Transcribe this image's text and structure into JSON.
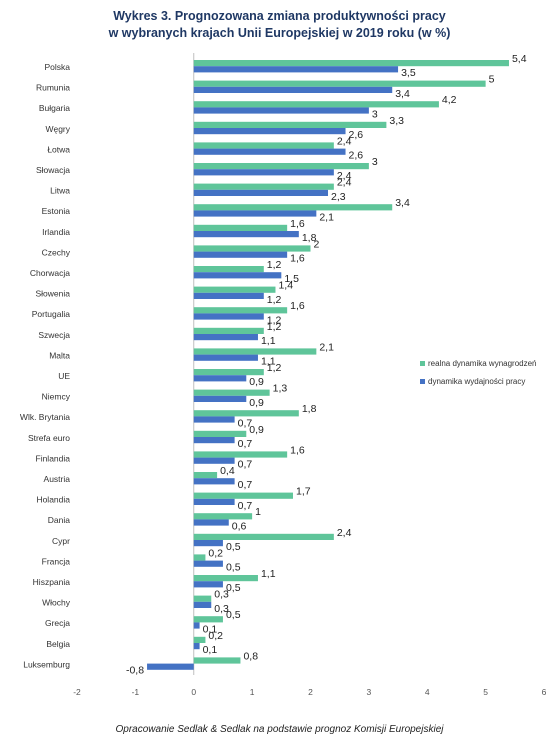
{
  "chart_data": {
    "type": "bar",
    "orientation": "horizontal",
    "title_line1": "Wykres 3. Prognozowana zmiana produktywności pracy",
    "title_line2": "w wybranych krajach Unii Europejskiej w 2019 roku (w %)",
    "source": "Opracowanie Sedlak & Sedlak na podstawie prognoz Komisji Europejskiej",
    "categories": [
      "Polska",
      "Rumunia",
      "Bułgaria",
      "Węgry",
      "Łotwa",
      "Słowacja",
      "Litwa",
      "Estonia",
      "Irlandia",
      "Czechy",
      "Chorwacja",
      "Słowenia",
      "Portugalia",
      "Szwecja",
      "Malta",
      "UE",
      "Niemcy",
      "Wlk. Brytania",
      "Strefa euro",
      "Finlandia",
      "Austria",
      "Holandia",
      "Dania",
      "Cypr",
      "Francja",
      "Hiszpania",
      "Włochy",
      "Grecja",
      "Belgia",
      "Luksemburg"
    ],
    "series": [
      {
        "name": "realna dynamika wynagrodzeń",
        "color": "#5fc59a",
        "values": [
          5.4,
          5,
          4.2,
          3.3,
          2.4,
          3,
          2.4,
          3.4,
          1.6,
          2,
          1.2,
          1.4,
          1.6,
          1.2,
          2.1,
          1.2,
          1.3,
          1.8,
          0.9,
          1.6,
          0.4,
          1.7,
          1,
          2.4,
          0.2,
          1.1,
          0.3,
          0.5,
          0.2,
          0.8
        ],
        "labels": [
          "5,4",
          "5",
          "4,2",
          "3,3",
          "2,4",
          "3",
          "2,4",
          "3,4",
          "1,6",
          "2",
          "1,2",
          "1,4",
          "1,6",
          "1,2",
          "2,1",
          "1,2",
          "1,3",
          "1,8",
          "0,9",
          "1,6",
          "0,4",
          "1,7",
          "1",
          "2,4",
          "0,2",
          "1,1",
          "0,3",
          "0,5",
          "0,2",
          "0,8"
        ]
      },
      {
        "name": "dynamika wydajności pracy",
        "color": "#4472c4",
        "values": [
          3.5,
          3.4,
          3,
          2.6,
          2.6,
          2.4,
          2.3,
          2.1,
          1.8,
          1.6,
          1.5,
          1.2,
          1.2,
          1.1,
          1.1,
          0.9,
          0.9,
          0.7,
          0.7,
          0.7,
          0.7,
          0.7,
          0.6,
          0.5,
          0.5,
          0.5,
          0.3,
          0.1,
          0.1,
          -0.8
        ],
        "labels": [
          "3,5",
          "3,4",
          "3",
          "2,6",
          "2,6",
          "2,4",
          "2,3",
          "2,1",
          "1,8",
          "1,6",
          "1,5",
          "1,2",
          "1,2",
          "1,1",
          "1,1",
          "0,9",
          "0,9",
          "0,7",
          "0,7",
          "0,7",
          "0,7",
          "0,7",
          "0,6",
          "0,5",
          "0,5",
          "0,5",
          "0,3",
          "0,1",
          "0,1",
          "-0,8"
        ]
      }
    ],
    "xlim": [
      -2,
      6
    ],
    "xticks": [
      "-2",
      "-1",
      "0",
      "1",
      "2",
      "3",
      "4",
      "5",
      "6"
    ],
    "legend_position": "right",
    "grid": false
  }
}
